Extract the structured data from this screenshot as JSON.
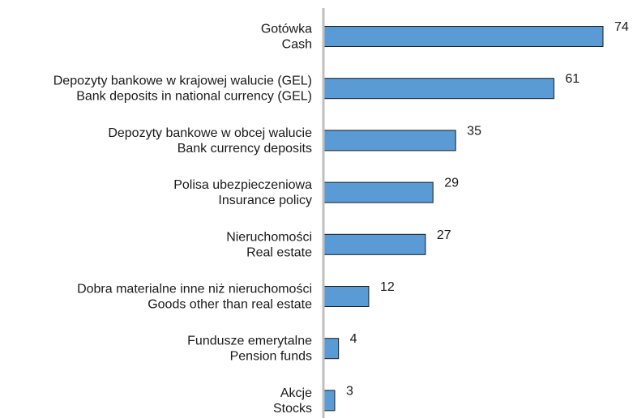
{
  "chart_data": {
    "type": "bar",
    "orientation": "horizontal",
    "categories": [
      [
        "Gotówka",
        "Cash"
      ],
      [
        "Depozyty bankowe w krajowej walucie (GEL)",
        "Bank deposits in national currency (GEL)"
      ],
      [
        "Depozyty bankowe w obcej walucie",
        "Bank currency deposits"
      ],
      [
        "Polisa ubezpieczeniowa",
        "Insurance policy"
      ],
      [
        "Nieruchomości",
        "Real estate"
      ],
      [
        "Dobra materialne inne niż nieruchomości",
        "Goods other than real estate"
      ],
      [
        "Fundusze emerytalne",
        "Pension funds"
      ],
      [
        "Akcje",
        "Stocks"
      ]
    ],
    "values": [
      74,
      61,
      35,
      29,
      27,
      12,
      4,
      3
    ],
    "xlim": [
      0,
      80
    ],
    "grid": false,
    "legend": "none",
    "bar_color": "#5b9bd5",
    "bar_edge_color": "#1a1a1a",
    "axis_color": "#bfbfbf"
  }
}
